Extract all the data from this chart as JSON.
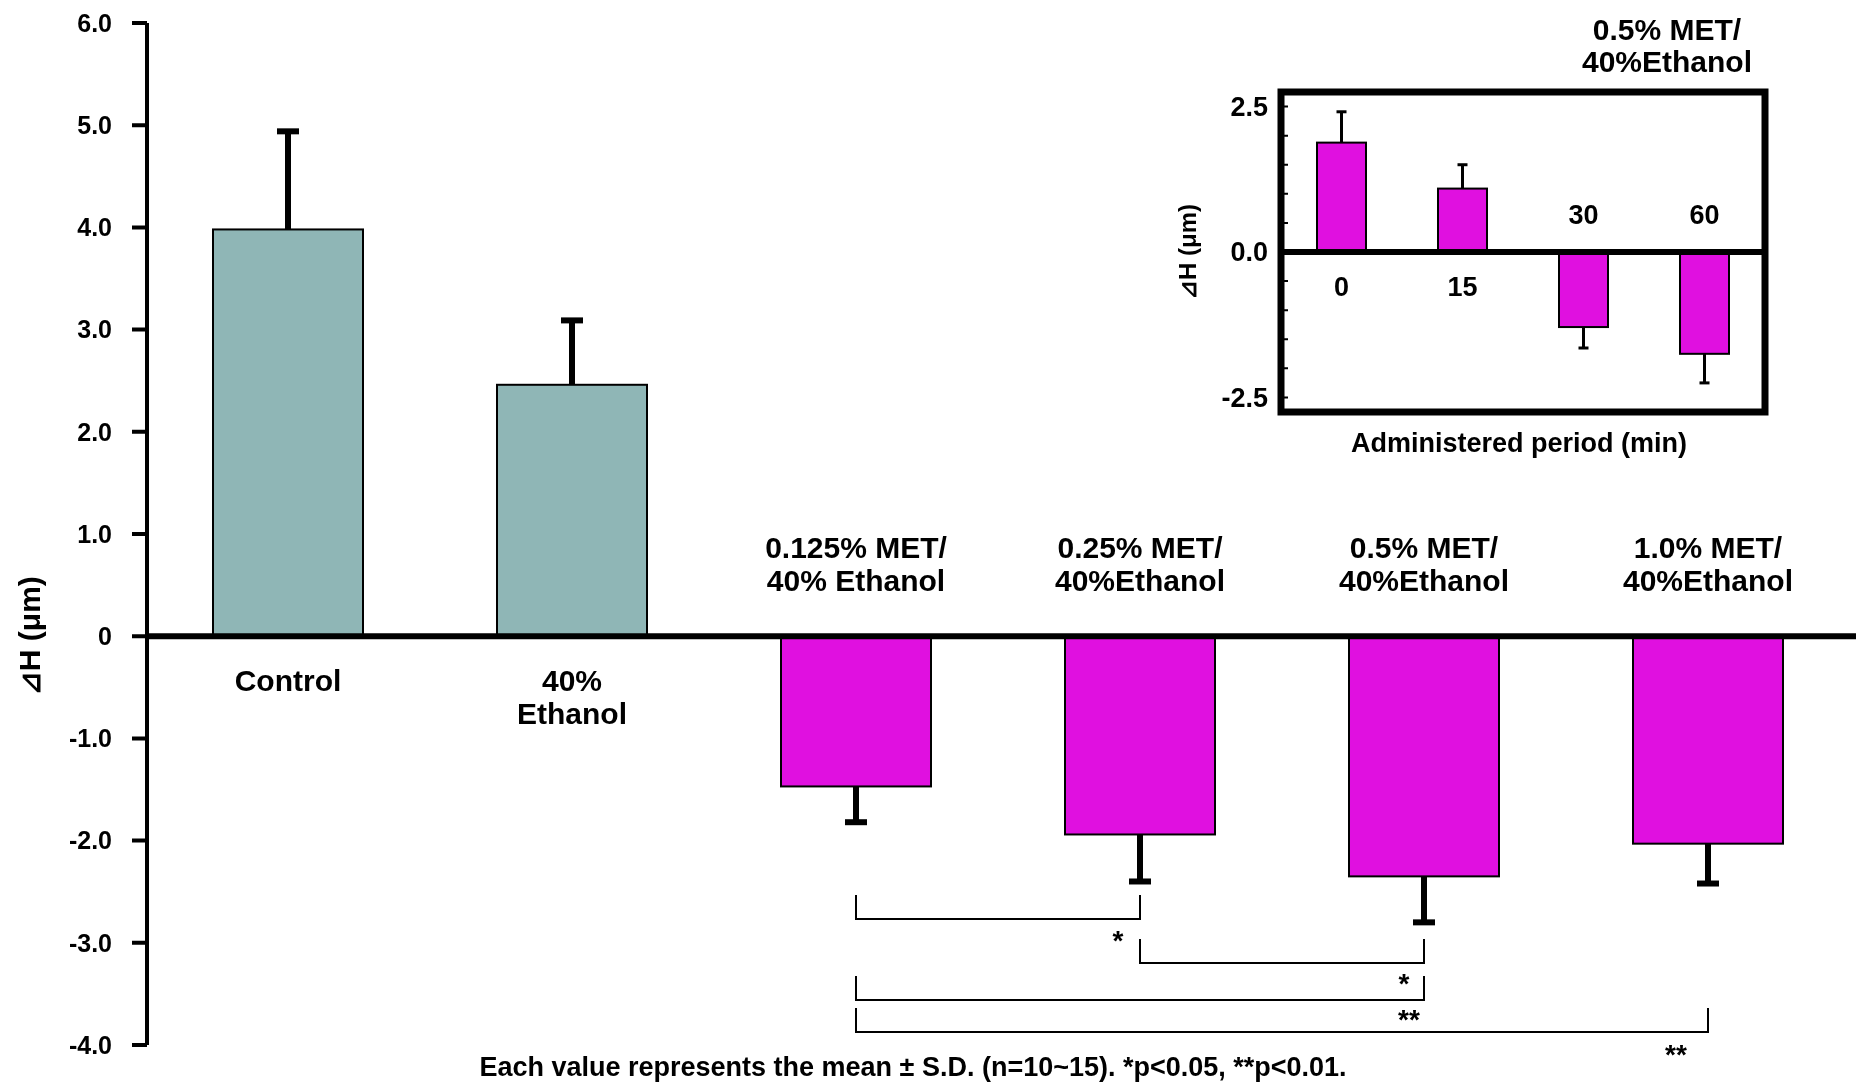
{
  "chart_data": [
    {
      "type": "bar",
      "ylabel": "⊿H (μm)",
      "categories": [
        "Control",
        "40%\nEthanol",
        "0.125% MET/\n40% Ethanol",
        "0.25% MET/\n40%Ethanol",
        "0.5% MET/\n40%Ethanol",
        "1.0% MET/\n40%Ethanol"
      ],
      "values": [
        3.98,
        2.46,
        -1.47,
        -1.94,
        -2.35,
        -2.03
      ],
      "colors": [
        "#8fb6b6",
        "#8fb6b6",
        "#e010e0",
        "#e010e0",
        "#e010e0",
        "#e010e0"
      ],
      "errors": [
        [
          3.98,
          4.94
        ],
        [
          2.46,
          3.09
        ],
        [
          -1.82,
          -1.47
        ],
        [
          -2.4,
          -1.94
        ],
        [
          -2.8,
          -2.35
        ],
        [
          -2.42,
          -2.03
        ]
      ],
      "ylim": [
        -4,
        6
      ],
      "yticks": [
        {
          "value": 6,
          "label": "6.0"
        },
        {
          "value": 5,
          "label": "5.0"
        },
        {
          "value": 4,
          "label": "4.0"
        },
        {
          "value": 3,
          "label": "3.0"
        },
        {
          "value": 2,
          "label": "2.0"
        },
        {
          "value": 1,
          "label": "1.0"
        },
        0,
        {
          "value": -1,
          "label": "-1.0"
        },
        {
          "value": -2,
          "label": "-2.0"
        },
        {
          "value": -3,
          "label": "-3.0"
        },
        {
          "value": -4,
          "label": "-4.0"
        }
      ],
      "annotations": [
        "*",
        "*",
        "**",
        "**",
        "Each value represents the mean ± S.D. (n=10~15). *p<0.05, **p<0.01."
      ]
    },
    {
      "type": "bar",
      "title": "0.5% MET/\n40%Ethanol",
      "xlabel": "Administered period (min)",
      "ylabel": "⊿H (μm)",
      "categories": [
        "0",
        "15",
        "30",
        "60"
      ],
      "values": [
        1.88,
        1.09,
        -1.29,
        -1.75
      ],
      "color": "#e010e0",
      "errors": [
        [
          1.88,
          2.41
        ],
        [
          1.09,
          1.5
        ],
        [
          -1.65,
          -1.29
        ],
        [
          -2.25,
          -1.75
        ]
      ],
      "ylim": [
        -2.75,
        2.75
      ],
      "yticks": [
        {
          "value": 2.5,
          "label": "2.5"
        },
        {
          "value": 2,
          "label": null
        },
        {
          "value": 1.5,
          "label": null
        },
        {
          "value": 1,
          "label": null
        },
        {
          "value": 0.5,
          "label": null
        },
        {
          "value": 0,
          "label": "0.0"
        },
        {
          "value": -0.5,
          "label": null
        },
        {
          "value": -1,
          "label": null
        },
        {
          "value": -1.5,
          "label": null
        },
        {
          "value": -2,
          "label": null
        },
        {
          "value": -2.5,
          "label": "-2.5"
        }
      ]
    }
  ]
}
